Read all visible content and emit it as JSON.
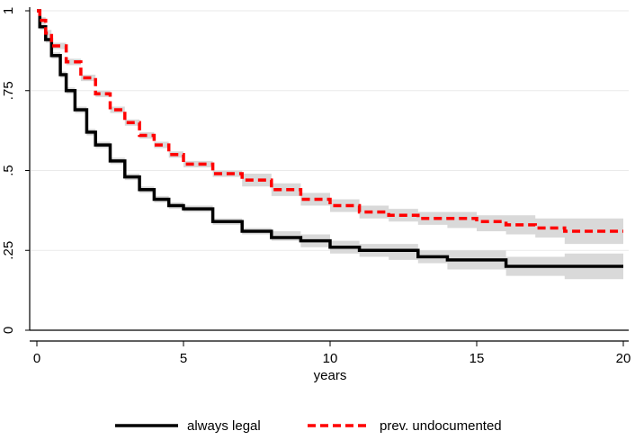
{
  "chart_data": {
    "type": "line",
    "title": "",
    "xlabel": "years",
    "ylabel": "",
    "xlim": [
      0,
      20
    ],
    "ylim": [
      0,
      1
    ],
    "grid": true,
    "x_ticks": [
      0,
      5,
      10,
      15,
      20
    ],
    "x_tick_labels": [
      "0",
      "5",
      "10",
      "15",
      "20"
    ],
    "y_ticks": [
      0,
      0.25,
      0.5,
      0.75,
      1
    ],
    "y_tick_labels": [
      "0",
      ".25",
      ".5",
      ".75",
      "1"
    ],
    "legend_position": "bottom",
    "series": [
      {
        "name": "always legal",
        "color": "#000000",
        "dash": "solid",
        "ci_color": "#d9d9d9",
        "x": [
          0,
          0.1,
          0.3,
          0.5,
          0.8,
          1.0,
          1.3,
          1.7,
          2.0,
          2.5,
          3.0,
          3.5,
          4.0,
          4.5,
          5.0,
          6.0,
          7.0,
          8.0,
          9.0,
          10.0,
          11.0,
          12.0,
          13.0,
          14.0,
          15.0,
          16.0,
          17.0,
          18.0,
          19.0,
          20.0
        ],
        "y": [
          1.0,
          0.95,
          0.91,
          0.86,
          0.8,
          0.75,
          0.69,
          0.62,
          0.58,
          0.53,
          0.48,
          0.44,
          0.41,
          0.39,
          0.38,
          0.34,
          0.31,
          0.29,
          0.28,
          0.26,
          0.25,
          0.25,
          0.23,
          0.22,
          0.22,
          0.2,
          0.2,
          0.2,
          0.2,
          0.2
        ],
        "ci_lower": [
          1.0,
          0.94,
          0.9,
          0.85,
          0.79,
          0.74,
          0.68,
          0.61,
          0.57,
          0.52,
          0.47,
          0.43,
          0.4,
          0.38,
          0.37,
          0.33,
          0.3,
          0.28,
          0.26,
          0.24,
          0.23,
          0.22,
          0.21,
          0.19,
          0.19,
          0.17,
          0.17,
          0.16,
          0.16,
          0.16
        ],
        "ci_upper": [
          1.0,
          0.96,
          0.92,
          0.87,
          0.81,
          0.76,
          0.7,
          0.63,
          0.59,
          0.54,
          0.49,
          0.45,
          0.42,
          0.4,
          0.39,
          0.35,
          0.32,
          0.31,
          0.3,
          0.28,
          0.27,
          0.27,
          0.25,
          0.25,
          0.25,
          0.23,
          0.23,
          0.24,
          0.24,
          0.24
        ]
      },
      {
        "name": "prev. undocumented",
        "color": "#ff0000",
        "dash": "dashed",
        "ci_color": "#d9d9d9",
        "x": [
          0,
          0.1,
          0.3,
          0.5,
          1.0,
          1.5,
          2.0,
          2.5,
          3.0,
          3.5,
          4.0,
          4.5,
          5.0,
          6.0,
          7.0,
          8.0,
          9.0,
          10.0,
          11.0,
          12.0,
          13.0,
          14.0,
          15.0,
          16.0,
          17.0,
          18.0,
          19.0,
          20.0
        ],
        "y": [
          1.0,
          0.97,
          0.93,
          0.89,
          0.84,
          0.79,
          0.74,
          0.69,
          0.65,
          0.61,
          0.58,
          0.55,
          0.52,
          0.49,
          0.47,
          0.44,
          0.41,
          0.39,
          0.37,
          0.36,
          0.35,
          0.35,
          0.34,
          0.33,
          0.32,
          0.31,
          0.31,
          0.31
        ],
        "ci_lower": [
          1.0,
          0.96,
          0.92,
          0.88,
          0.83,
          0.78,
          0.73,
          0.68,
          0.64,
          0.6,
          0.57,
          0.54,
          0.51,
          0.48,
          0.45,
          0.42,
          0.39,
          0.37,
          0.35,
          0.34,
          0.33,
          0.32,
          0.31,
          0.3,
          0.29,
          0.27,
          0.27,
          0.27
        ],
        "ci_upper": [
          1.0,
          0.98,
          0.94,
          0.9,
          0.85,
          0.8,
          0.75,
          0.7,
          0.66,
          0.62,
          0.59,
          0.56,
          0.53,
          0.5,
          0.49,
          0.46,
          0.43,
          0.41,
          0.39,
          0.38,
          0.37,
          0.37,
          0.36,
          0.36,
          0.35,
          0.35,
          0.35,
          0.35
        ]
      }
    ]
  }
}
